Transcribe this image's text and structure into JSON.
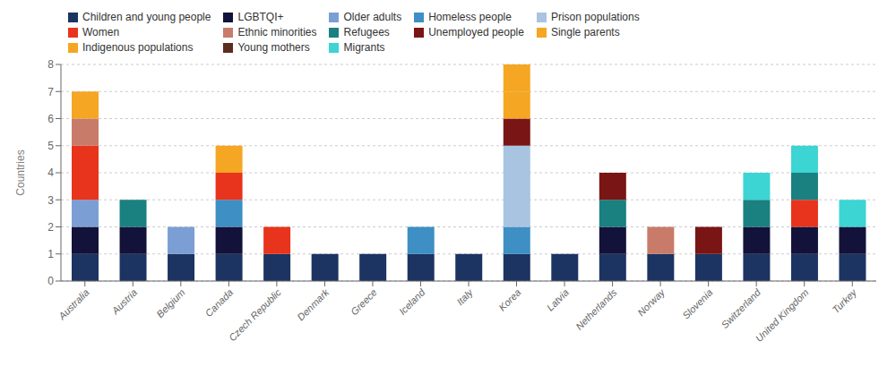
{
  "chart_data": {
    "type": "bar",
    "stacked": true,
    "grid": true,
    "ylabel": "Countries",
    "categories": [
      "Australia",
      "Austria",
      "Belgium",
      "Canada",
      "Czech Republic",
      "Denmark",
      "Greece",
      "Iceland",
      "Italy",
      "Korea",
      "Latvia",
      "Netherlands",
      "Norway",
      "Slovenia",
      "Switzerland",
      "United Kingdom",
      "Turkey"
    ],
    "series": [
      {
        "name": "Children and young people",
        "color": "#1c3461",
        "values": [
          1,
          1,
          1,
          1,
          1,
          1,
          1,
          1,
          1,
          1,
          1,
          1,
          1,
          1,
          1,
          1,
          1
        ]
      },
      {
        "name": "LGBTQI+",
        "color": "#12123a",
        "values": [
          1,
          1,
          0,
          1,
          0,
          0,
          0,
          0,
          0,
          0,
          0,
          1,
          0,
          0,
          1,
          1,
          1
        ]
      },
      {
        "name": "Older adults",
        "color": "#7b9fd4",
        "values": [
          1,
          0,
          1,
          0,
          0,
          0,
          0,
          0,
          0,
          0,
          0,
          0,
          0,
          0,
          0,
          0,
          0
        ]
      },
      {
        "name": "Homeless people",
        "color": "#3d8fc4",
        "values": [
          0,
          0,
          0,
          1,
          0,
          0,
          0,
          1,
          0,
          1,
          0,
          0,
          0,
          0,
          0,
          0,
          0
        ]
      },
      {
        "name": "Prison populations",
        "color": "#a8c4e0",
        "values": [
          0,
          0,
          0,
          0,
          0,
          0,
          0,
          0,
          0,
          3,
          0,
          0,
          0,
          0,
          0,
          0,
          0
        ]
      },
      {
        "name": "Women",
        "color": "#e8341c",
        "values": [
          2,
          0,
          0,
          1,
          1,
          0,
          0,
          0,
          0,
          0,
          0,
          0,
          0,
          0,
          0,
          1,
          0
        ]
      },
      {
        "name": "Ethnic minorities",
        "color": "#c97b6a",
        "values": [
          1,
          0,
          0,
          0,
          0,
          0,
          0,
          0,
          0,
          0,
          0,
          0,
          1,
          0,
          0,
          0,
          0
        ]
      },
      {
        "name": "Refugees",
        "color": "#1a8080",
        "values": [
          0,
          1,
          0,
          0,
          0,
          0,
          0,
          0,
          0,
          0,
          0,
          1,
          0,
          0,
          1,
          1,
          0
        ]
      },
      {
        "name": "Unemployed people",
        "color": "#7a1515",
        "values": [
          0,
          0,
          0,
          0,
          0,
          0,
          0,
          0,
          0,
          1,
          0,
          1,
          0,
          1,
          0,
          0,
          0
        ]
      },
      {
        "name": "Single parents",
        "color": "#f5a623",
        "values": [
          0,
          0,
          0,
          0,
          0,
          0,
          0,
          0,
          0,
          1,
          0,
          0,
          0,
          0,
          0,
          0,
          0
        ]
      },
      {
        "name": "Indigenous populations",
        "color": "#f5a623",
        "values": [
          1,
          0,
          0,
          1,
          0,
          0,
          0,
          0,
          0,
          1,
          0,
          0,
          0,
          0,
          0,
          0,
          0
        ]
      },
      {
        "name": "Young mothers",
        "color": "#5c2d1e",
        "values": [
          0,
          0,
          0,
          0,
          0,
          0,
          0,
          0,
          0,
          0,
          0,
          0,
          0,
          0,
          0,
          0,
          0
        ]
      },
      {
        "name": "Migrants",
        "color": "#3dd4d4",
        "values": [
          0,
          0,
          0,
          0,
          0,
          0,
          0,
          0,
          0,
          0,
          0,
          0,
          0,
          0,
          1,
          1,
          1
        ]
      }
    ],
    "ylim": [
      0,
      8
    ],
    "yticks": [
      0,
      1,
      2,
      3,
      4,
      5,
      6,
      7,
      8
    ]
  }
}
